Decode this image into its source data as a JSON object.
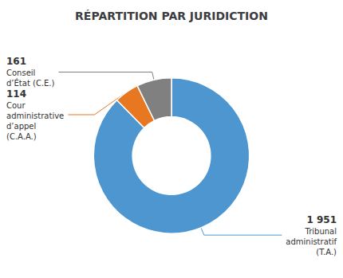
{
  "chart_data": {
    "type": "pie",
    "title": "RÉPARTITION PAR JURIDICTION",
    "categories": [
      "Tribunal\nadministratif\n(T.A.)",
      "Cour\nadministrative\nd’appel\n(C.A.A.)",
      "Conseil\nd’État (C.E.)"
    ],
    "values": [
      1951,
      114,
      161
    ],
    "value_labels": [
      "1 951",
      "114",
      "161"
    ],
    "colors": [
      "#4D96D0",
      "#E87722",
      "#808080"
    ],
    "data_labels": true
  }
}
